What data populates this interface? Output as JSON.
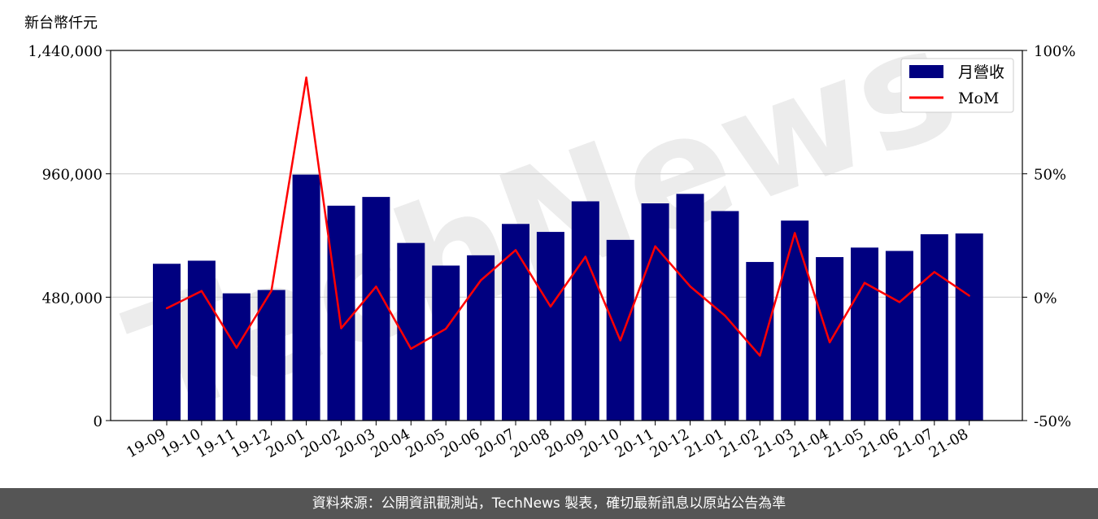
{
  "unit_label": "新台幣仟元",
  "watermark": "TechNews",
  "footer_text": "資料來源：公開資訊觀測站，TechNews 製表，確切最新訊息以原站公告為準",
  "colors": {
    "bar": "#000080",
    "line": "#ff0000",
    "grid": "#d0d0d0",
    "footer_bg": "#555555"
  },
  "chart_data": {
    "type": "bar",
    "categories": [
      "19-09",
      "19-10",
      "19-11",
      "19-12",
      "20-01",
      "20-02",
      "20-03",
      "20-04",
      "20-05",
      "20-06",
      "20-07",
      "20-08",
      "20-09",
      "20-10",
      "20-11",
      "20-12",
      "21-01",
      "21-02",
      "21-03",
      "21-04",
      "21-05",
      "21-06",
      "21-07",
      "21-08"
    ],
    "series": [
      {
        "name": "月營收",
        "type": "bar",
        "axis": "left",
        "values": [
          610000,
          622000,
          495000,
          508000,
          957000,
          836000,
          870000,
          691000,
          603000,
          643000,
          765000,
          734000,
          853000,
          703000,
          845000,
          882000,
          815000,
          617000,
          778000,
          636000,
          673000,
          660000,
          725000,
          728000
        ]
      },
      {
        "name": "MoM",
        "type": "line",
        "axis": "right",
        "values": [
          -4.5,
          2.5,
          -20.5,
          2.6,
          89.0,
          -12.6,
          4.3,
          -20.9,
          -12.8,
          6.8,
          19.1,
          -3.8,
          16.4,
          -17.5,
          20.6,
          4.4,
          -7.5,
          -23.7,
          26.0,
          -18.3,
          5.8,
          -2.0,
          10.2,
          0.6
        ]
      }
    ],
    "y_left": {
      "ylim": [
        0,
        1440000
      ],
      "ticks": [
        0,
        480000,
        960000,
        1440000
      ],
      "tick_labels": [
        "0",
        "480,000",
        "960,000",
        "1,440,000"
      ]
    },
    "y_right": {
      "ylim": [
        -50,
        100
      ],
      "ticks": [
        -50,
        0,
        50,
        100
      ],
      "tick_labels": [
        "-50%",
        "0%",
        "50%",
        "100%"
      ]
    },
    "grid": "horizontal",
    "legend_position": "top-right"
  }
}
